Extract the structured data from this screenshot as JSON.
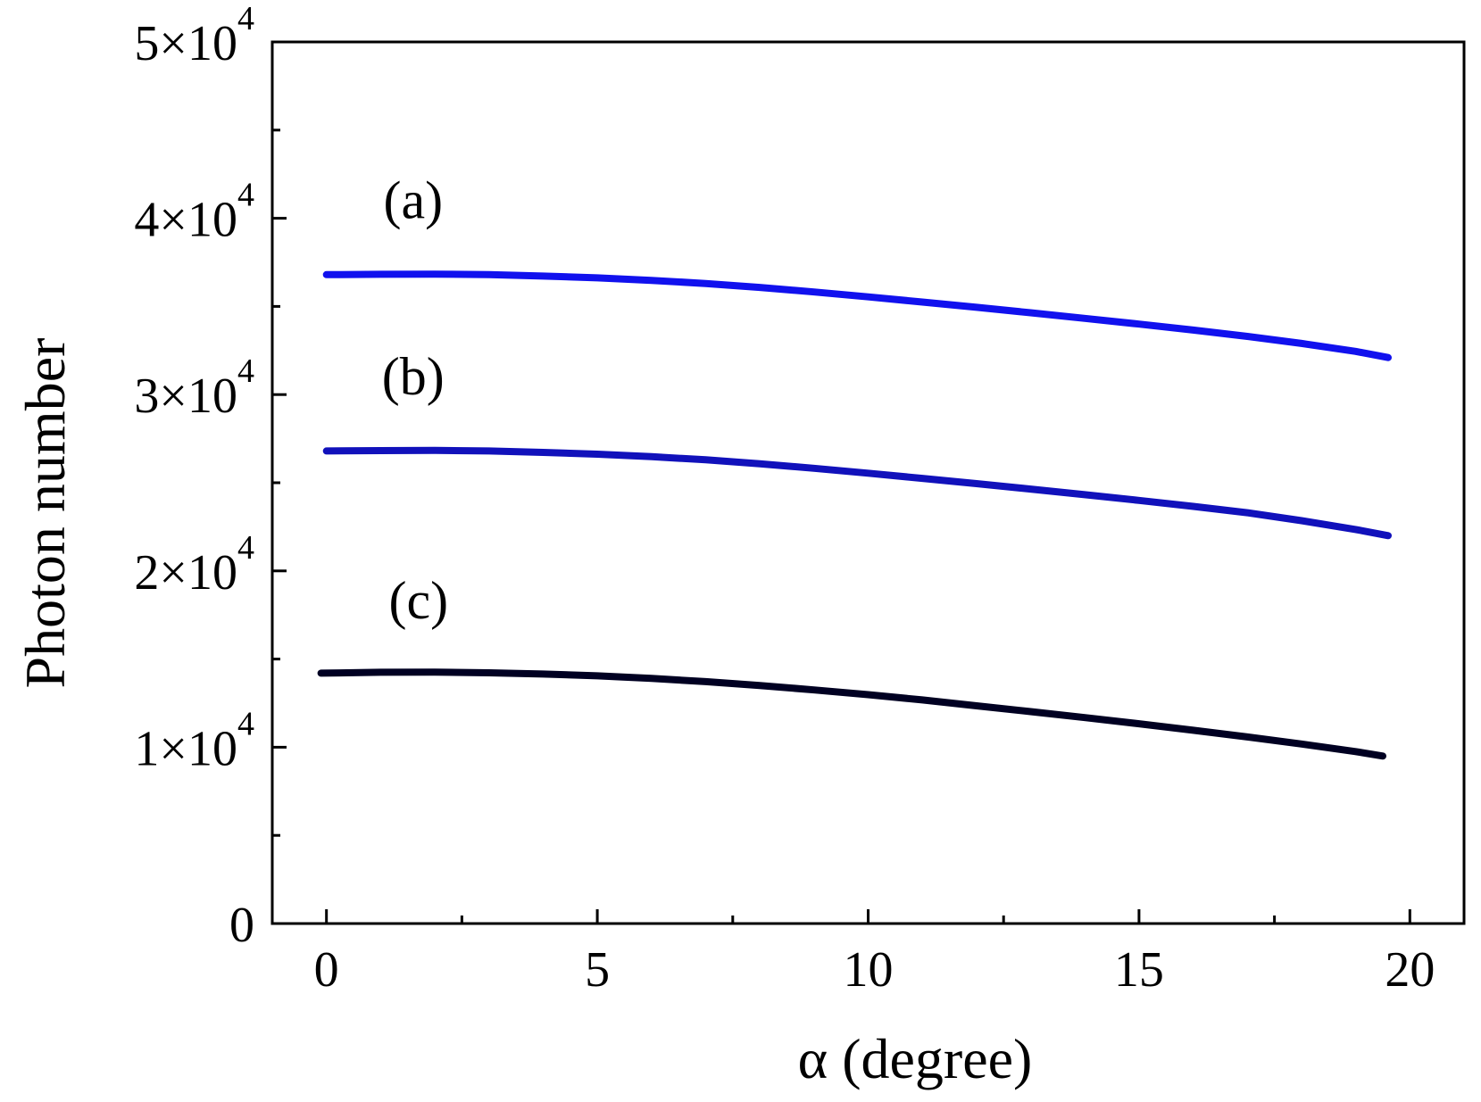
{
  "chart_data": {
    "type": "line",
    "xlabel": "α (degree)",
    "ylabel": "Photon number",
    "xlim": [
      -1,
      21
    ],
    "ylim": [
      0,
      50000
    ],
    "x_ticks": [
      0,
      5,
      10,
      15,
      20
    ],
    "x_tick_labels": [
      "0",
      "5",
      "10",
      "15",
      "20"
    ],
    "x_minor_ticks": [
      2.5,
      7.5,
      12.5,
      17.5
    ],
    "y_ticks": [
      0,
      10000,
      20000,
      30000,
      40000,
      50000
    ],
    "y_tick_labels": [
      {
        "mantissa": "0",
        "exponent": ""
      },
      {
        "mantissa": "1×10",
        "exponent": "4"
      },
      {
        "mantissa": "2×10",
        "exponent": "4"
      },
      {
        "mantissa": "3×10",
        "exponent": "4"
      },
      {
        "mantissa": "4×10",
        "exponent": "4"
      },
      {
        "mantissa": "5×10",
        "exponent": "4"
      }
    ],
    "y_minor_ticks": [
      5000,
      15000,
      25000,
      35000,
      45000
    ],
    "grid": false,
    "series": [
      {
        "name": "(a)",
        "color": "#1111ee",
        "x": [
          0,
          1,
          2,
          3,
          4,
          5,
          6,
          7,
          8,
          9,
          10,
          11,
          12,
          13,
          14,
          15,
          16,
          17,
          18,
          19,
          19.6
        ],
        "y": [
          36800,
          36820,
          36830,
          36800,
          36720,
          36620,
          36480,
          36300,
          36080,
          35820,
          35540,
          35250,
          34950,
          34640,
          34320,
          34000,
          33660,
          33300,
          32900,
          32450,
          32100
        ],
        "label_at": [
          1.6,
          40000
        ]
      },
      {
        "name": "(b)",
        "color": "#1111bb",
        "x": [
          0,
          1,
          2,
          3,
          4,
          5,
          6,
          7,
          8,
          9,
          10,
          11,
          12,
          13,
          14,
          15,
          16,
          17,
          18,
          19,
          19.6
        ],
        "y": [
          26800,
          26820,
          26830,
          26800,
          26720,
          26620,
          26480,
          26300,
          26080,
          25820,
          25540,
          25250,
          24950,
          24640,
          24320,
          24000,
          23660,
          23300,
          22850,
          22350,
          22000
        ],
        "label_at": [
          1.6,
          30000
        ]
      },
      {
        "name": "(c)",
        "color": "#000022",
        "x": [
          -0.1,
          1,
          2,
          3,
          4,
          5,
          6,
          7,
          8,
          9,
          10,
          11,
          12,
          13,
          14,
          15,
          16,
          17,
          18,
          19,
          19.5
        ],
        "y": [
          14200,
          14250,
          14260,
          14220,
          14150,
          14050,
          13900,
          13720,
          13500,
          13250,
          12980,
          12680,
          12350,
          12020,
          11680,
          11330,
          10960,
          10580,
          10180,
          9750,
          9500
        ],
        "label_at": [
          1.7,
          17300
        ]
      }
    ]
  }
}
